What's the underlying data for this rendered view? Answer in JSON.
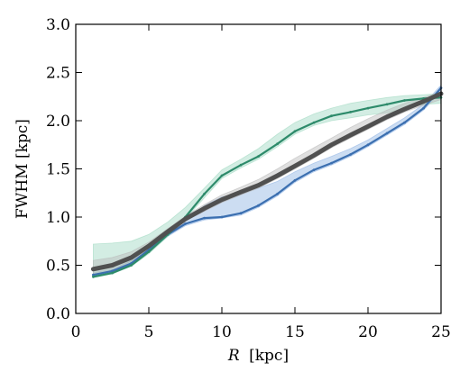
{
  "chart_data": {
    "type": "line",
    "xlabel_var": "R",
    "xlabel_unit": "[kpc]",
    "ylabel": "FWHM [kpc]",
    "xlim": [
      0,
      25
    ],
    "ylim": [
      0.0,
      3.0
    ],
    "xticks": [
      0,
      5,
      10,
      15,
      20,
      25
    ],
    "yticks": [
      0.0,
      0.5,
      1.0,
      1.5,
      2.0,
      2.5,
      3.0
    ],
    "xtick_labels": [
      "0",
      "5",
      "10",
      "15",
      "20",
      "25"
    ],
    "ytick_labels": [
      "0.0",
      "0.5",
      "1.0",
      "1.5",
      "2.0",
      "2.5",
      "3.0"
    ],
    "grid": false,
    "series": [
      {
        "color": "#3b6fb0",
        "fill_color": "#8fb3e3",
        "x": [
          1.2,
          2.5,
          3.8,
          5.0,
          6.3,
          7.5,
          8.8,
          10.0,
          11.3,
          12.5,
          13.8,
          15.0,
          16.3,
          17.5,
          18.8,
          20.0,
          21.3,
          22.5,
          23.8,
          25.0
        ],
        "values": [
          0.4,
          0.44,
          0.52,
          0.66,
          0.82,
          0.93,
          0.99,
          1.0,
          1.04,
          1.12,
          1.24,
          1.38,
          1.49,
          1.56,
          1.65,
          1.75,
          1.87,
          1.98,
          2.13,
          2.34
        ],
        "lower": [
          0.38,
          0.42,
          0.5,
          0.64,
          0.8,
          0.91,
          0.97,
          0.99,
          1.02,
          1.1,
          1.22,
          1.36,
          1.47,
          1.54,
          1.63,
          1.73,
          1.85,
          1.96,
          2.11,
          2.3
        ],
        "upper": [
          0.42,
          0.46,
          0.55,
          0.68,
          0.85,
          0.97,
          1.12,
          1.21,
          1.25,
          1.3,
          1.37,
          1.47,
          1.56,
          1.63,
          1.71,
          1.8,
          1.92,
          2.03,
          2.17,
          2.37
        ]
      },
      {
        "color": "#2e8b6b",
        "fill_color": "#9ed8c0",
        "x": [
          1.2,
          2.5,
          3.8,
          5.0,
          6.3,
          7.5,
          8.8,
          10.0,
          11.3,
          12.5,
          13.8,
          15.0,
          16.3,
          17.5,
          18.8,
          20.0,
          21.3,
          22.5,
          23.8,
          25.0
        ],
        "values": [
          0.38,
          0.42,
          0.5,
          0.64,
          0.82,
          1.0,
          1.24,
          1.43,
          1.54,
          1.63,
          1.76,
          1.89,
          1.98,
          2.05,
          2.09,
          2.13,
          2.17,
          2.21,
          2.23,
          2.24
        ],
        "lower": [
          0.37,
          0.41,
          0.49,
          0.62,
          0.8,
          0.98,
          1.2,
          1.4,
          1.51,
          1.6,
          1.73,
          1.86,
          1.95,
          2.0,
          2.03,
          2.06,
          2.08,
          2.13,
          2.17,
          2.18
        ],
        "upper": [
          0.72,
          0.73,
          0.75,
          0.82,
          0.95,
          1.1,
          1.3,
          1.49,
          1.6,
          1.71,
          1.86,
          1.98,
          2.07,
          2.13,
          2.18,
          2.21,
          2.24,
          2.26,
          2.27,
          2.28
        ]
      },
      {
        "color": "#505050",
        "fill_color": "#b8b8b8",
        "x": [
          1.2,
          2.5,
          3.8,
          5.0,
          6.3,
          7.5,
          8.8,
          10.0,
          11.3,
          12.5,
          13.8,
          15.0,
          16.3,
          17.5,
          18.8,
          20.0,
          21.3,
          22.5,
          23.8,
          25.0
        ],
        "values": [
          0.46,
          0.5,
          0.58,
          0.7,
          0.85,
          0.98,
          1.09,
          1.18,
          1.26,
          1.33,
          1.43,
          1.53,
          1.64,
          1.75,
          1.85,
          1.94,
          2.04,
          2.12,
          2.2,
          2.28
        ],
        "lower": [
          0.4,
          0.45,
          0.54,
          0.67,
          0.82,
          0.96,
          1.06,
          1.15,
          1.23,
          1.3,
          1.4,
          1.5,
          1.61,
          1.72,
          1.82,
          1.91,
          2.01,
          2.09,
          2.16,
          2.22
        ],
        "upper": [
          0.55,
          0.58,
          0.64,
          0.74,
          0.88,
          1.01,
          1.13,
          1.23,
          1.31,
          1.39,
          1.5,
          1.61,
          1.72,
          1.82,
          1.93,
          2.02,
          2.11,
          2.18,
          2.24,
          2.3
        ]
      }
    ]
  }
}
